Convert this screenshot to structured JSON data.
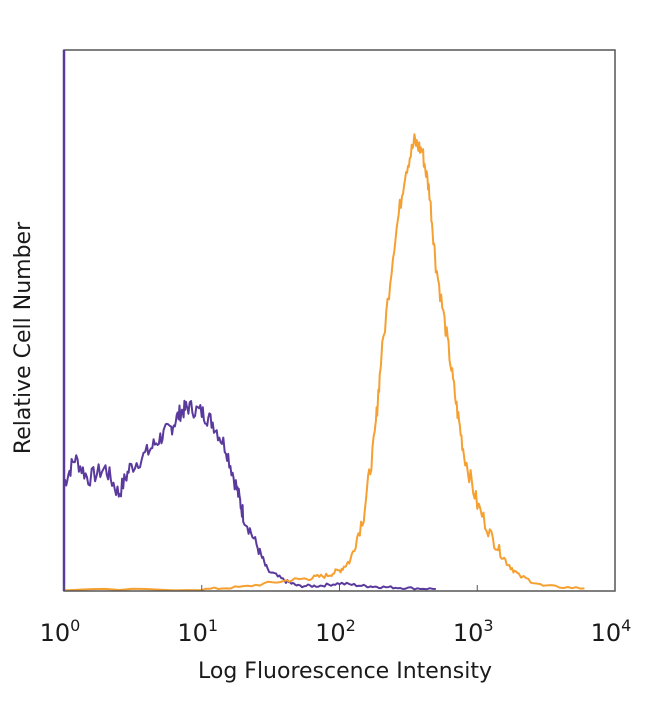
{
  "chart_data": {
    "type": "line",
    "title": "",
    "xlabel": "Log Fluorescence Intensity",
    "ylabel": "Relative Cell Number",
    "x_scale": "log",
    "xlim": [
      1,
      10000
    ],
    "ylim": [
      0,
      1
    ],
    "grid": false,
    "legend": "none",
    "x_ticks": [
      {
        "base": "10",
        "exp": "0",
        "value": 1
      },
      {
        "base": "10",
        "exp": "1",
        "value": 10
      },
      {
        "base": "10",
        "exp": "2",
        "value": 100
      },
      {
        "base": "10",
        "exp": "3",
        "value": 1000
      },
      {
        "base": "10",
        "exp": "4",
        "value": 10000
      }
    ],
    "series": [
      {
        "color": "#5b3a9e",
        "x": [
          1,
          1.2,
          1.5,
          2,
          2.5,
          3,
          4,
          5,
          6,
          7,
          8,
          10,
          12,
          15,
          18,
          20,
          25,
          30,
          40,
          50,
          70,
          100,
          150,
          200,
          300,
          500
        ],
        "y": [
          0.21,
          0.26,
          0.22,
          0.24,
          0.19,
          0.24,
          0.27,
          0.3,
          0.32,
          0.35,
          0.36,
          0.35,
          0.33,
          0.28,
          0.2,
          0.15,
          0.09,
          0.04,
          0.02,
          0.01,
          0.01,
          0.015,
          0.01,
          0.008,
          0.006,
          0.004
        ]
      },
      {
        "color": "#f5a031",
        "x": [
          1,
          10,
          20,
          40,
          60,
          80,
          100,
          120,
          150,
          180,
          200,
          250,
          300,
          350,
          400,
          450,
          500,
          600,
          700,
          800,
          1000,
          1300,
          1600,
          2000,
          3000,
          6000
        ],
        "y": [
          0.002,
          0.003,
          0.008,
          0.02,
          0.025,
          0.03,
          0.04,
          0.06,
          0.15,
          0.3,
          0.45,
          0.68,
          0.82,
          0.88,
          0.86,
          0.78,
          0.64,
          0.5,
          0.37,
          0.27,
          0.17,
          0.1,
          0.06,
          0.03,
          0.01,
          0.005
        ]
      }
    ]
  }
}
